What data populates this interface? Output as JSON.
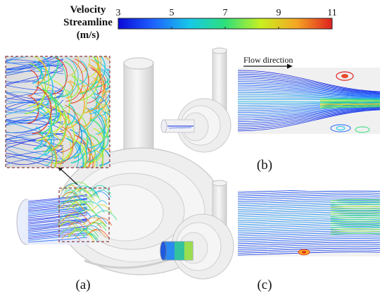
{
  "legend": {
    "title_line1": "Velocity",
    "title_line2": "Streamline",
    "title_line3": "(m/s)",
    "ticks": [
      "3",
      "5",
      "7",
      "9",
      "11"
    ],
    "min": 3,
    "max": 11,
    "colors": [
      "#0a0ad8",
      "#1e64ff",
      "#16c8e8",
      "#2ee07a",
      "#c8f020",
      "#f5a623",
      "#e02020"
    ]
  },
  "panels": {
    "a": {
      "label": "(a)"
    },
    "b": {
      "label": "(b)"
    },
    "c": {
      "label": "(c)"
    }
  },
  "flow": {
    "label": "Flow direction"
  }
}
